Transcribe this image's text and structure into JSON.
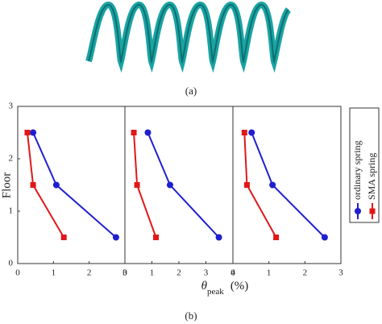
{
  "captions": [
    "(a)",
    "(b)"
  ],
  "chart_data": [
    {
      "type": "line",
      "ylabel": "Floor",
      "xlim": [
        0,
        3
      ],
      "xticks": [
        0,
        1,
        2,
        3
      ],
      "ylim": [
        0,
        3
      ],
      "yticks": [
        0,
        1,
        2,
        3
      ],
      "y": [
        2.5,
        1.5,
        0.5
      ],
      "series": [
        {
          "color": "#1f1fd0",
          "marker": "circle",
          "values": [
            0.43,
            1.08,
            2.75
          ]
        },
        {
          "color": "#e01818",
          "marker": "square",
          "values": [
            0.27,
            0.43,
            1.29
          ]
        }
      ]
    },
    {
      "type": "line",
      "xlabel": "θ",
      "xlabel_sub": "peak",
      "xlabel_unit": "(%)",
      "xlim": [
        0,
        4
      ],
      "xticks": [
        0,
        1,
        2,
        3,
        4
      ],
      "ylim": [
        0,
        3
      ],
      "y": [
        2.5,
        1.5,
        0.5
      ],
      "series": [
        {
          "color": "#1f1fd0",
          "marker": "circle",
          "values": [
            0.85,
            1.67,
            3.48
          ]
        },
        {
          "color": "#e01818",
          "marker": "square",
          "values": [
            0.33,
            0.45,
            1.15
          ]
        }
      ]
    },
    {
      "type": "line",
      "xlim": [
        0,
        3
      ],
      "xticks": [
        0,
        1,
        2,
        3
      ],
      "ylim": [
        0,
        3
      ],
      "legend": "outside-right",
      "y": [
        2.5,
        1.5,
        0.5
      ],
      "series": [
        {
          "name": "ordinary spring",
          "color": "#1f1fd0",
          "marker": "circle",
          "values": [
            0.52,
            1.1,
            2.55
          ]
        },
        {
          "name": "SMA spring",
          "color": "#e01818",
          "marker": "square",
          "values": [
            0.32,
            0.39,
            1.2
          ]
        }
      ]
    }
  ]
}
